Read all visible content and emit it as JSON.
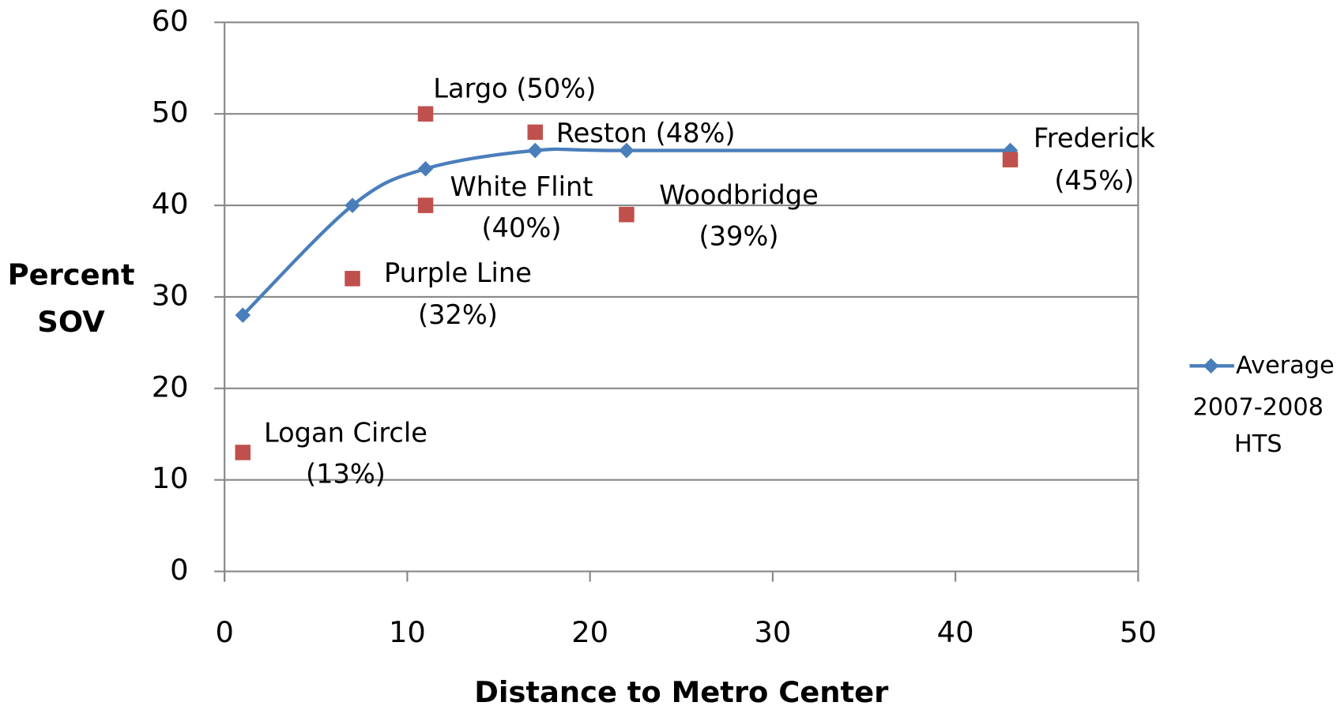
{
  "chart_data": {
    "type": "scatter",
    "xlabel": "Distance to Metro Center",
    "ylabel": "Percent SOV",
    "xlim": [
      0,
      50
    ],
    "xticks": [
      0,
      10,
      20,
      30,
      40,
      50
    ],
    "ylim": [
      0,
      60
    ],
    "yticks": [
      0,
      10,
      20,
      30,
      40,
      50,
      60
    ],
    "grid": true,
    "legend": "right",
    "series": [
      {
        "name": "Average 2007-2008 HTS",
        "color": "#4a7ebb",
        "line": true,
        "smooth": true,
        "marker": "diamond",
        "x": [
          1,
          7,
          11,
          17,
          22,
          43
        ],
        "values": [
          28,
          40,
          44,
          46,
          46,
          46
        ]
      },
      {
        "color": "#c0504d",
        "marker": "square",
        "x": [
          1,
          7,
          11,
          11,
          17,
          22,
          43
        ],
        "values": [
          13,
          32,
          40,
          50,
          48,
          39,
          45
        ],
        "labels": [
          [
            "Logan Circle",
            "(13%)"
          ],
          [
            "Purple Line",
            "(32%)"
          ],
          [
            "White Flint",
            "(40%)"
          ],
          [
            "Largo (50%)"
          ],
          [
            "Reston (48%)"
          ],
          [
            "Woodbridge",
            "(39%)"
          ],
          [
            "Frederick",
            "(45%)"
          ]
        ]
      }
    ]
  }
}
